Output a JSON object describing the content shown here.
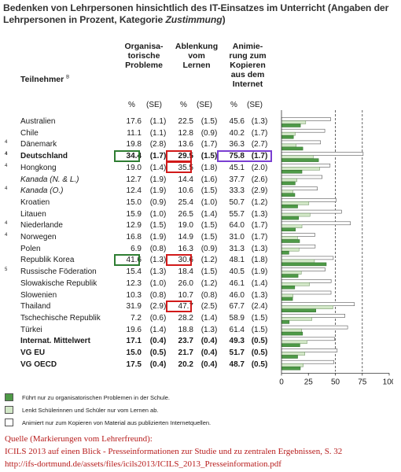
{
  "title_main": "Bedenken von Lehrpersonen hinsichtlich des IT-Einsatzes im Unterricht (Angaben der Lehrpersonen in Prozent, Kategorie ",
  "title_italic": "Zustimmung",
  "title_end": ")",
  "column_headers": {
    "col1": [
      "Organisa-",
      "torische",
      "Probleme"
    ],
    "col2": [
      "Ablenkung",
      "vom",
      "Lernen"
    ],
    "col3": [
      "Animie-",
      "rung zum",
      "Kopieren",
      "aus dem",
      "Internet"
    ],
    "participants": "Teilnehmer",
    "participants_footnote": "B",
    "percent": "%",
    "se": "(SE)"
  },
  "rows": [
    {
      "fn": "",
      "name": "Australien",
      "italic": false,
      "bold": false,
      "v1": "17.6",
      "s1": "(1.1)",
      "v2": "22.5",
      "s2": "(1.5)",
      "v3": "45.6",
      "s3": "(1.3)"
    },
    {
      "fn": "",
      "name": "Chile",
      "italic": false,
      "bold": false,
      "v1": "11.1",
      "s1": "(1.1)",
      "v2": "12.8",
      "s2": "(0.9)",
      "v3": "40.2",
      "s3": "(1.7)"
    },
    {
      "fn": "4",
      "name": "Dänemark",
      "italic": false,
      "bold": false,
      "v1": "19.8",
      "s1": "(2.8)",
      "v2": "13.6",
      "s2": "(1.7)",
      "v3": "36.3",
      "s3": "(2.7)"
    },
    {
      "fn": "4",
      "name": "Deutschland",
      "italic": false,
      "bold": true,
      "v1": "34.4",
      "s1": "(1.7)",
      "v2": "29.5",
      "s2": "(1.5)",
      "v3": "75.8",
      "s3": "(1.7)"
    },
    {
      "fn": "4",
      "name": "Hongkong",
      "italic": false,
      "bold": false,
      "v1": "19.0",
      "s1": "(1.4)",
      "v2": "35.5",
      "s2": "(1.8)",
      "v3": "45.1",
      "s3": "(2.0)"
    },
    {
      "fn": "",
      "name": "Kanada (N. & L.)",
      "italic": true,
      "bold": false,
      "v1": "12.7",
      "s1": "(1.9)",
      "v2": "14.4",
      "s2": "(1.6)",
      "v3": "37.7",
      "s3": "(2.6)"
    },
    {
      "fn": "4",
      "name": "Kanada (O.)",
      "italic": true,
      "bold": false,
      "v1": "12.4",
      "s1": "(1.9)",
      "v2": "10.6",
      "s2": "(1.5)",
      "v3": "33.3",
      "s3": "(2.9)"
    },
    {
      "fn": "",
      "name": "Kroatien",
      "italic": false,
      "bold": false,
      "v1": "15.0",
      "s1": "(0.9)",
      "v2": "25.4",
      "s2": "(1.0)",
      "v3": "50.7",
      "s3": "(1.2)"
    },
    {
      "fn": "",
      "name": "Litauen",
      "italic": false,
      "bold": false,
      "v1": "15.9",
      "s1": "(1.0)",
      "v2": "26.5",
      "s2": "(1.4)",
      "v3": "55.7",
      "s3": "(1.3)"
    },
    {
      "fn": "4",
      "name": "Niederlande",
      "italic": false,
      "bold": false,
      "v1": "12.9",
      "s1": "(1.5)",
      "v2": "19.0",
      "s2": "(1.5)",
      "v3": "64.0",
      "s3": "(1.7)"
    },
    {
      "fn": "4",
      "name": "Norwegen",
      "italic": false,
      "bold": false,
      "v1": "16.8",
      "s1": "(1.9)",
      "v2": "14.9",
      "s2": "(1.5)",
      "v3": "31.0",
      "s3": "(1.7)"
    },
    {
      "fn": "",
      "name": "Polen",
      "italic": false,
      "bold": false,
      "v1": "6.9",
      "s1": "(0.8)",
      "v2": "16.3",
      "s2": "(0.9)",
      "v3": "31.3",
      "s3": "(1.3)"
    },
    {
      "fn": "",
      "name": "Republik Korea",
      "italic": false,
      "bold": false,
      "v1": "41.6",
      "s1": "(1.3)",
      "v2": "30.6",
      "s2": "(1.2)",
      "v3": "48.1",
      "s3": "(1.8)"
    },
    {
      "fn": "5",
      "name": "Russische Föderation",
      "italic": false,
      "bold": false,
      "v1": "15.4",
      "s1": "(1.3)",
      "v2": "18.4",
      "s2": "(1.5)",
      "v3": "40.5",
      "s3": "(1.9)"
    },
    {
      "fn": "",
      "name": "Slowakische Republik",
      "italic": false,
      "bold": false,
      "v1": "12.3",
      "s1": "(1.0)",
      "v2": "26.0",
      "s2": "(1.2)",
      "v3": "46.1",
      "s3": "(1.4)"
    },
    {
      "fn": "",
      "name": "Slowenien",
      "italic": false,
      "bold": false,
      "v1": "10.3",
      "s1": "(0.8)",
      "v2": "10.7",
      "s2": "(0.8)",
      "v3": "46.0",
      "s3": "(1.3)"
    },
    {
      "fn": "",
      "name": "Thailand",
      "italic": false,
      "bold": false,
      "v1": "31.9",
      "s1": "(2.9)",
      "v2": "47.7",
      "s2": "(2.5)",
      "v3": "67.7",
      "s3": "(2.4)"
    },
    {
      "fn": "",
      "name": "Tschechische Republik",
      "italic": false,
      "bold": false,
      "v1": "7.2",
      "s1": "(0.6)",
      "v2": "28.2",
      "s2": "(1.4)",
      "v3": "58.9",
      "s3": "(1.5)"
    },
    {
      "fn": "",
      "name": "Türkei",
      "italic": false,
      "bold": false,
      "v1": "19.6",
      "s1": "(1.4)",
      "v2": "18.8",
      "s2": "(1.3)",
      "v3": "61.4",
      "s3": "(1.5)"
    },
    {
      "fn": "",
      "name": "Internat. Mittelwert",
      "italic": false,
      "bold": true,
      "v1": "17.1",
      "s1": "(0.4)",
      "v2": "23.7",
      "s2": "(0.4)",
      "v3": "49.3",
      "s3": "(0.5)"
    },
    {
      "fn": "",
      "name": "VG EU",
      "italic": false,
      "bold": true,
      "v1": "15.0",
      "s1": "(0.5)",
      "v2": "21.7",
      "s2": "(0.4)",
      "v3": "51.7",
      "s3": "(0.5)"
    },
    {
      "fn": "",
      "name": "VG OECD",
      "italic": false,
      "bold": true,
      "v1": "17.5",
      "s1": "(0.4)",
      "v2": "20.2",
      "s2": "(0.4)",
      "v3": "48.7",
      "s3": "(0.5)"
    }
  ],
  "highlights": [
    {
      "row": 3,
      "col": 1,
      "color": "green"
    },
    {
      "row": 3,
      "col": 2,
      "color": "red"
    },
    {
      "row": 3,
      "col": 3,
      "color": "purple"
    },
    {
      "row": 4,
      "col": 2,
      "color": "red"
    },
    {
      "row": 12,
      "col": 1,
      "color": "green"
    },
    {
      "row": 12,
      "col": 2,
      "color": "red"
    },
    {
      "row": 16,
      "col": 2,
      "color": "red"
    }
  ],
  "chart_data": {
    "type": "bar",
    "orientation": "horizontal",
    "categories": [
      "Australien",
      "Chile",
      "Dänemark",
      "Deutschland",
      "Hongkong",
      "Kanada (N. & L.)",
      "Kanada (O.)",
      "Kroatien",
      "Litauen",
      "Niederlande",
      "Norwegen",
      "Polen",
      "Republik Korea",
      "Russische Föderation",
      "Slowakische Republik",
      "Slowenien",
      "Thailand",
      "Tschechische Republik",
      "Türkei",
      "Internat. Mittelwert",
      "VG EU",
      "VG OECD"
    ],
    "series": [
      {
        "name": "Führt nur zu organisatorischen Problemen in der Schule.",
        "color": "#4e9a47",
        "values": [
          17.6,
          11.1,
          19.8,
          34.4,
          19.0,
          12.7,
          12.4,
          15.0,
          15.9,
          12.9,
          16.8,
          6.9,
          41.6,
          15.4,
          12.3,
          10.3,
          31.9,
          7.2,
          19.6,
          17.1,
          15.0,
          17.5
        ]
      },
      {
        "name": "Lenkt Schülerinnen und Schüler nur vom Lernen ab.",
        "color": "#d3e8c8",
        "values": [
          22.5,
          12.8,
          13.6,
          29.5,
          35.5,
          14.4,
          10.6,
          25.4,
          26.5,
          19.0,
          14.9,
          16.3,
          30.6,
          18.4,
          26.0,
          10.7,
          47.7,
          28.2,
          18.8,
          23.7,
          21.7,
          20.2
        ]
      },
      {
        "name": "Animiert nur zum Kopieren von Material aus publizierten Internetquellen.",
        "color": "#ffffff",
        "values": [
          45.6,
          40.2,
          36.3,
          75.8,
          45.1,
          37.7,
          33.3,
          50.7,
          55.7,
          64.0,
          31.0,
          31.3,
          48.1,
          40.5,
          46.1,
          46.0,
          67.7,
          58.9,
          61.4,
          49.3,
          51.7,
          48.7
        ]
      }
    ],
    "xlim": [
      0,
      100
    ],
    "xticks": [
      0,
      25,
      50,
      75,
      100
    ],
    "reference_lines": [
      50,
      75
    ]
  },
  "source": {
    "line1": "Quelle (Markierungen vom Lehrerfreund):",
    "line2": "ICILS 2013 auf einen Blick - Presseinformationen zur Studie und zu zentralen Ergebnissen, S. 32",
    "line3": "http://ifs-dortmund.de/assets/files/icils2013/ICILS_2013_Presseinformation.pdf"
  }
}
